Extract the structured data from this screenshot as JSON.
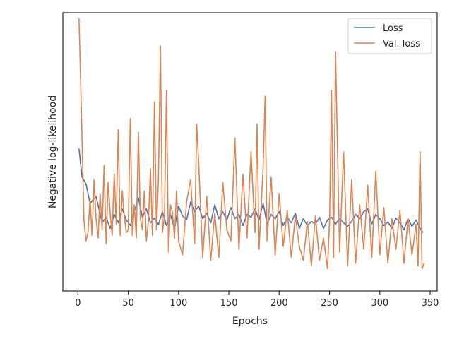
{
  "chart_data": {
    "type": "line",
    "xlabel": "Epochs",
    "ylabel": "Negative log-likelihood",
    "xlim": [
      -15,
      357
    ],
    "ylim": [
      0,
      1
    ],
    "xticks": [
      0,
      50,
      100,
      150,
      200,
      250,
      300,
      350
    ],
    "xtick_labels": [
      "0",
      "50",
      "100",
      "150",
      "200",
      "250",
      "300",
      "350"
    ],
    "y_ticks_shown": false,
    "grid": false,
    "legend_position": "top-right",
    "series": [
      {
        "name": "Loss",
        "color": "#4c72b0",
        "x": [
          1,
          4,
          8,
          12,
          18,
          24,
          28,
          32,
          36,
          40,
          44,
          48,
          52,
          56,
          60,
          64,
          68,
          72,
          76,
          80,
          84,
          88,
          92,
          96,
          100,
          104,
          108,
          112,
          116,
          120,
          124,
          128,
          132,
          136,
          140,
          144,
          148,
          152,
          156,
          160,
          164,
          168,
          172,
          176,
          180,
          184,
          188,
          192,
          196,
          200,
          204,
          208,
          212,
          216,
          220,
          224,
          228,
          232,
          236,
          240,
          244,
          248,
          252,
          256,
          260,
          264,
          268,
          272,
          276,
          280,
          284,
          288,
          292,
          296,
          300,
          304,
          308,
          312,
          316,
          320,
          324,
          328,
          332,
          336,
          340,
          343
        ],
        "y": [
          0.512,
          0.41,
          0.385,
          0.315,
          0.34,
          0.245,
          0.265,
          0.225,
          0.275,
          0.245,
          0.295,
          0.255,
          0.235,
          0.285,
          0.335,
          0.265,
          0.295,
          0.245,
          0.262,
          0.238,
          0.285,
          0.235,
          0.275,
          0.225,
          0.305,
          0.27,
          0.255,
          0.32,
          0.285,
          0.305,
          0.26,
          0.28,
          0.245,
          0.31,
          0.26,
          0.285,
          0.255,
          0.3,
          0.26,
          0.275,
          0.235,
          0.275,
          0.265,
          0.295,
          0.255,
          0.315,
          0.24,
          0.275,
          0.26,
          0.285,
          0.235,
          0.265,
          0.245,
          0.28,
          0.225,
          0.26,
          0.235,
          0.25,
          0.24,
          0.265,
          0.225,
          0.255,
          0.265,
          0.24,
          0.26,
          0.245,
          0.232,
          0.25,
          0.275,
          0.26,
          0.285,
          0.295,
          0.24,
          0.275,
          0.26,
          0.235,
          0.248,
          0.225,
          0.262,
          0.245,
          0.22,
          0.26,
          0.232,
          0.255,
          0.225,
          0.21
        ]
      },
      {
        "name": "Val. loss",
        "color": "#dd8452",
        "x": [
          1,
          2,
          4,
          6,
          8,
          10,
          12,
          14,
          16,
          18,
          20,
          22,
          24,
          26,
          28,
          30,
          32,
          34,
          36,
          38,
          40,
          42,
          44,
          46,
          48,
          50,
          52,
          54,
          56,
          58,
          60,
          62,
          64,
          66,
          68,
          70,
          72,
          74,
          76,
          78,
          80,
          82,
          84,
          86,
          88,
          90,
          92,
          94,
          96,
          98,
          100,
          104,
          108,
          112,
          116,
          118,
          120,
          124,
          128,
          132,
          136,
          140,
          144,
          148,
          152,
          156,
          160,
          164,
          168,
          172,
          176,
          178,
          180,
          184,
          186,
          188,
          192,
          196,
          200,
          204,
          208,
          212,
          216,
          220,
          224,
          228,
          232,
          236,
          240,
          244,
          248,
          250,
          252,
          254,
          256,
          260,
          264,
          268,
          272,
          276,
          280,
          284,
          288,
          292,
          296,
          300,
          304,
          308,
          312,
          316,
          320,
          324,
          328,
          332,
          336,
          338,
          340,
          342,
          344
        ],
        "y": [
          0.98,
          0.85,
          0.55,
          0.25,
          0.18,
          0.21,
          0.33,
          0.2,
          0.4,
          0.26,
          0.19,
          0.35,
          0.22,
          0.45,
          0.17,
          0.39,
          0.28,
          0.2,
          0.42,
          0.24,
          0.58,
          0.2,
          0.36,
          0.27,
          0.21,
          0.22,
          0.62,
          0.2,
          0.31,
          0.19,
          0.57,
          0.26,
          0.22,
          0.36,
          0.18,
          0.25,
          0.44,
          0.2,
          0.68,
          0.22,
          0.4,
          0.88,
          0.21,
          0.27,
          0.72,
          0.14,
          0.31,
          0.28,
          0.19,
          0.36,
          0.18,
          0.13,
          0.32,
          0.4,
          0.17,
          0.6,
          0.46,
          0.12,
          0.34,
          0.11,
          0.28,
          0.12,
          0.39,
          0.22,
          0.18,
          0.55,
          0.15,
          0.42,
          0.19,
          0.5,
          0.21,
          0.6,
          0.15,
          0.44,
          0.7,
          0.18,
          0.41,
          0.13,
          0.35,
          0.16,
          0.29,
          0.12,
          0.27,
          0.16,
          0.11,
          0.25,
          0.09,
          0.27,
          0.11,
          0.19,
          0.08,
          0.25,
          0.72,
          0.12,
          0.86,
          0.14,
          0.5,
          0.09,
          0.4,
          0.1,
          0.31,
          0.15,
          0.38,
          0.12,
          0.43,
          0.13,
          0.3,
          0.1,
          0.26,
          0.15,
          0.29,
          0.1,
          0.26,
          0.13,
          0.24,
          0.09,
          0.5,
          0.08,
          0.1
        ]
      }
    ]
  }
}
